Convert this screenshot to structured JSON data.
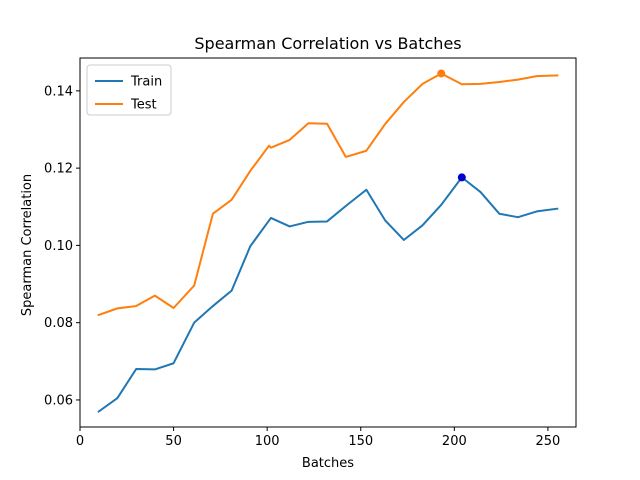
{
  "chart_data": {
    "type": "line",
    "title": "Spearman Correlation vs Batches",
    "xlabel": "Batches",
    "ylabel": "Spearman Correlation",
    "xlim": [
      0,
      265
    ],
    "ylim": [
      0.053,
      0.1485
    ],
    "xticks": [
      0,
      50,
      100,
      150,
      200,
      250
    ],
    "yticks": [
      0.06,
      0.08,
      0.1,
      0.12,
      0.14
    ],
    "ytick_labels": [
      "0.06",
      "0.08",
      "0.10",
      "0.12",
      "0.14"
    ],
    "legend": "top-left",
    "grid": false,
    "series": [
      {
        "name": "Train",
        "color": "#1f77b4",
        "x": [
          10,
          20,
          30,
          40,
          50,
          51,
          61,
          71,
          81,
          91,
          102,
          112,
          122,
          132,
          142,
          153,
          163,
          173,
          183,
          193,
          204,
          214,
          224,
          234,
          244,
          255
        ],
        "y": [
          0.057,
          0.0605,
          0.068,
          0.0679,
          0.0695,
          0.0705,
          0.08,
          0.0843,
          0.0883,
          0.0998,
          0.1071,
          0.1049,
          0.1061,
          0.1062,
          0.1102,
          0.1144,
          0.1065,
          0.1014,
          0.1052,
          0.1105,
          0.1176,
          0.1138,
          0.1082,
          0.1073,
          0.1088,
          0.1095
        ],
        "marker": {
          "x": 204,
          "y": 0.1176,
          "color": "#0000cc"
        }
      },
      {
        "name": "Test",
        "color": "#ff7f0e",
        "x": [
          10,
          20,
          30,
          40,
          50,
          61,
          71,
          81,
          91,
          101,
          102,
          112,
          122,
          132,
          142,
          153,
          163,
          173,
          183,
          193,
          204,
          214,
          224,
          234,
          244,
          255
        ],
        "y": [
          0.082,
          0.0837,
          0.0843,
          0.087,
          0.0838,
          0.0896,
          0.1082,
          0.1118,
          0.1193,
          0.1258,
          0.1253,
          0.1273,
          0.1316,
          0.1315,
          0.1229,
          0.1245,
          0.1314,
          0.1371,
          0.1418,
          0.1445,
          0.1417,
          0.1418,
          0.1423,
          0.1429,
          0.1438,
          0.144
        ],
        "marker": {
          "x": 193,
          "y": 0.1445,
          "color": "#ff7f0e"
        }
      }
    ]
  }
}
